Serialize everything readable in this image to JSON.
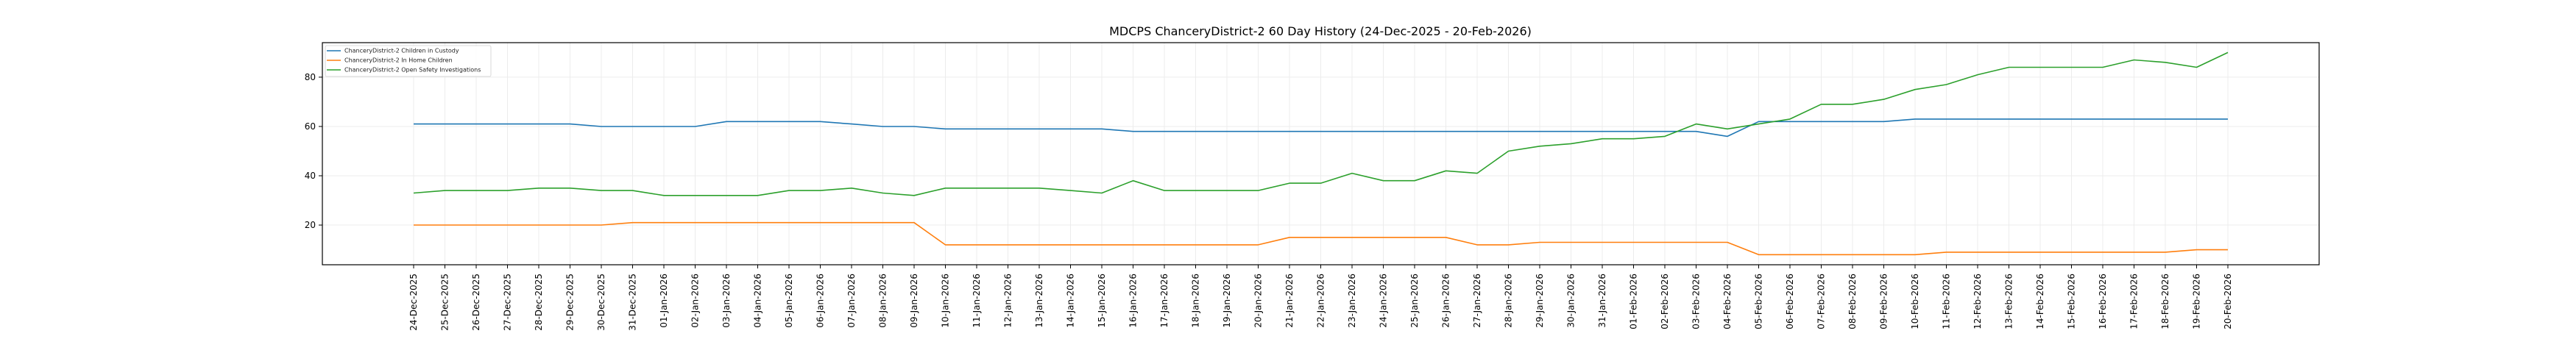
{
  "chart_data": {
    "type": "line",
    "title": "MDCPS ChanceryDistrict-2 60 Day History (24-Dec-2025 - 20-Feb-2026)",
    "xlabel": "",
    "ylabel": "",
    "ylim": [
      3.9,
      94.0
    ],
    "yticks": [
      20,
      40,
      60,
      80
    ],
    "ytick_labels": [
      "20",
      "40",
      "60",
      "80"
    ],
    "grid": true,
    "legend_position": "upper-left",
    "x": [
      "24-Dec-2025",
      "25-Dec-2025",
      "26-Dec-2025",
      "27-Dec-2025",
      "28-Dec-2025",
      "29-Dec-2025",
      "30-Dec-2025",
      "31-Dec-2025",
      "01-Jan-2026",
      "02-Jan-2026",
      "03-Jan-2026",
      "04-Jan-2026",
      "05-Jan-2026",
      "06-Jan-2026",
      "07-Jan-2026",
      "08-Jan-2026",
      "09-Jan-2026",
      "10-Jan-2026",
      "11-Jan-2026",
      "12-Jan-2026",
      "13-Jan-2026",
      "14-Jan-2026",
      "15-Jan-2026",
      "16-Jan-2026",
      "17-Jan-2026",
      "18-Jan-2026",
      "19-Jan-2026",
      "20-Jan-2026",
      "21-Jan-2026",
      "22-Jan-2026",
      "23-Jan-2026",
      "24-Jan-2026",
      "25-Jan-2026",
      "26-Jan-2026",
      "27-Jan-2026",
      "28-Jan-2026",
      "29-Jan-2026",
      "30-Jan-2026",
      "31-Jan-2026",
      "01-Feb-2026",
      "02-Feb-2026",
      "03-Feb-2026",
      "04-Feb-2026",
      "05-Feb-2026",
      "06-Feb-2026",
      "07-Feb-2026",
      "08-Feb-2026",
      "09-Feb-2026",
      "10-Feb-2026",
      "11-Feb-2026",
      "12-Feb-2026",
      "13-Feb-2026",
      "14-Feb-2026",
      "15-Feb-2026",
      "16-Feb-2026",
      "17-Feb-2026",
      "18-Feb-2026",
      "19-Feb-2026",
      "20-Feb-2026"
    ],
    "series": [
      {
        "name": "ChanceryDistrict-2 Children in Custody",
        "color": "#1f77b4",
        "values": [
          61,
          61,
          61,
          61,
          61,
          61,
          60,
          60,
          60,
          60,
          62,
          62,
          62,
          62,
          61,
          60,
          60,
          59,
          59,
          59,
          59,
          59,
          59,
          58,
          58,
          58,
          58,
          58,
          58,
          58,
          58,
          58,
          58,
          58,
          58,
          58,
          58,
          58,
          58,
          58,
          58,
          58,
          56,
          62,
          62,
          62,
          62,
          62,
          63,
          63,
          63,
          63,
          63,
          63,
          63,
          63,
          63,
          63,
          63
        ]
      },
      {
        "name": "ChanceryDistrict-2 In Home Children",
        "color": "#ff7f0e",
        "values": [
          20,
          20,
          20,
          20,
          20,
          20,
          20,
          21,
          21,
          21,
          21,
          21,
          21,
          21,
          21,
          21,
          21,
          12,
          12,
          12,
          12,
          12,
          12,
          12,
          12,
          12,
          12,
          12,
          15,
          15,
          15,
          15,
          15,
          15,
          12,
          12,
          13,
          13,
          13,
          13,
          13,
          13,
          13,
          8,
          8,
          8,
          8,
          8,
          8,
          9,
          9,
          9,
          9,
          9,
          9,
          9,
          9,
          10,
          10
        ]
      },
      {
        "name": "ChanceryDistrict-2 Open Safety Investigations",
        "color": "#2ca02c",
        "values": [
          33,
          34,
          34,
          34,
          35,
          35,
          34,
          34,
          32,
          32,
          32,
          32,
          34,
          34,
          35,
          33,
          32,
          35,
          35,
          35,
          35,
          34,
          33,
          38,
          34,
          34,
          34,
          34,
          37,
          37,
          41,
          38,
          38,
          42,
          41,
          50,
          52,
          53,
          55,
          55,
          56,
          61,
          59,
          61,
          63,
          69,
          69,
          71,
          75,
          77,
          81,
          84,
          84,
          84,
          84,
          87,
          86,
          84,
          90
        ]
      }
    ]
  }
}
